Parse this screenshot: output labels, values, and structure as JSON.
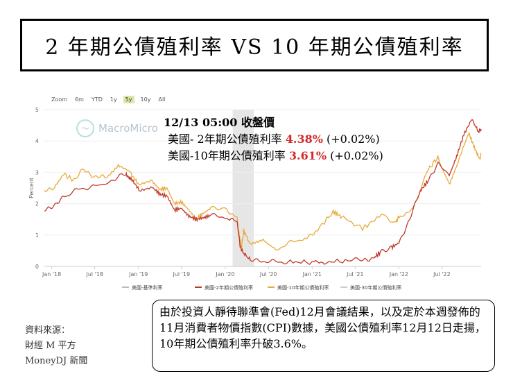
{
  "page_title": "2 年期公債殖利率 VS 10 年期公債殖利率",
  "range_buttons": [
    "Zoom",
    "6m",
    "YTD",
    "1y",
    "5y",
    "10y",
    "All"
  ],
  "range_selected": "5y",
  "watermark": "MacroMicro",
  "overlay": {
    "header": "12/13 05:00 收盤價",
    "rows": [
      {
        "label": "美國- 2年期公債殖利率 ",
        "value": "4.38%",
        "change": " (+0.02%)"
      },
      {
        "label": "美國-10年期公債殖利率 ",
        "value": "3.61%",
        "change": " (+0.02%)"
      }
    ]
  },
  "source": [
    "資料來源：",
    "財經 M 平方",
    "MoneyDJ 新聞"
  ],
  "note": "由於投資人靜待聯準會(Fed)12月會議結果，以及定於本週發佈的11月消費者物價指數(CPI)數據，美國公債殖利率12月12日走揚，10年期公債殖利率升破3.6%。",
  "colors": {
    "series_2y": "#c0392b",
    "series_10y": "#e8a93a",
    "recession": "#e6e6e6"
  },
  "chart_data": {
    "type": "line",
    "ylabel": "Percent",
    "ylim": [
      0,
      5
    ],
    "yticks": [
      "0",
      "1",
      "2",
      "3",
      "4",
      "5"
    ],
    "xlim": [
      "2017-12-01",
      "2022-12-13"
    ],
    "xticks": [
      {
        "label": "Jan '18",
        "date": "2018-01-01"
      },
      {
        "label": "Jul '18",
        "date": "2018-07-01"
      },
      {
        "label": "Jan '19",
        "date": "2019-01-01"
      },
      {
        "label": "Jul '19",
        "date": "2019-07-01"
      },
      {
        "label": "Jan '20",
        "date": "2020-01-01"
      },
      {
        "label": "Jul '20",
        "date": "2020-07-01"
      },
      {
        "label": "Jan '21",
        "date": "2021-01-01"
      },
      {
        "label": "Jul '21",
        "date": "2021-07-01"
      },
      {
        "label": "Jan '22",
        "date": "2022-01-01"
      },
      {
        "label": "Jul '22",
        "date": "2022-07-01"
      }
    ],
    "recession_band": [
      "2020-02-01",
      "2020-04-30"
    ],
    "legend": [
      {
        "name": "美國-基準利率",
        "color": "#bbbbbb"
      },
      {
        "name": "美國-2年期公債殖利率",
        "color": "#c0392b"
      },
      {
        "name": "美國-10年期公債殖利率",
        "color": "#e8a93a"
      },
      {
        "name": "美國-30年期公債殖利率",
        "color": "#cccccc"
      }
    ],
    "legend_position": "bottom",
    "series": [
      {
        "name": "美國-2年期公債殖利率",
        "points": [
          [
            "2017-12-01",
            1.78
          ],
          [
            "2018-01-15",
            1.98
          ],
          [
            "2018-03-01",
            2.25
          ],
          [
            "2018-05-01",
            2.48
          ],
          [
            "2018-07-01",
            2.55
          ],
          [
            "2018-09-01",
            2.7
          ],
          [
            "2018-11-08",
            2.96
          ],
          [
            "2018-12-01",
            2.8
          ],
          [
            "2019-01-03",
            2.45
          ],
          [
            "2019-03-01",
            2.52
          ],
          [
            "2019-04-01",
            2.3
          ],
          [
            "2019-05-01",
            2.25
          ],
          [
            "2019-06-01",
            1.8
          ],
          [
            "2019-07-01",
            1.85
          ],
          [
            "2019-08-01",
            1.6
          ],
          [
            "2019-09-01",
            1.5
          ],
          [
            "2019-10-01",
            1.55
          ],
          [
            "2019-11-01",
            1.62
          ],
          [
            "2020-01-01",
            1.58
          ],
          [
            "2020-02-20",
            1.4
          ],
          [
            "2020-03-05",
            0.6
          ],
          [
            "2020-03-20",
            0.4
          ],
          [
            "2020-04-15",
            0.22
          ],
          [
            "2020-06-01",
            0.18
          ],
          [
            "2020-08-01",
            0.14
          ],
          [
            "2020-10-01",
            0.15
          ],
          [
            "2021-01-01",
            0.12
          ],
          [
            "2021-03-01",
            0.14
          ],
          [
            "2021-06-01",
            0.18
          ],
          [
            "2021-08-01",
            0.22
          ],
          [
            "2021-09-15",
            0.25
          ],
          [
            "2021-10-15",
            0.45
          ],
          [
            "2021-12-01",
            0.6
          ],
          [
            "2022-01-01",
            0.75
          ],
          [
            "2022-02-15",
            1.5
          ],
          [
            "2022-04-01",
            2.4
          ],
          [
            "2022-05-01",
            2.7
          ],
          [
            "2022-06-15",
            3.3
          ],
          [
            "2022-08-01",
            2.9
          ],
          [
            "2022-09-01",
            3.5
          ],
          [
            "2022-10-01",
            4.2
          ],
          [
            "2022-11-04",
            4.7
          ],
          [
            "2022-12-01",
            4.3
          ],
          [
            "2022-12-13",
            4.38
          ]
        ]
      },
      {
        "name": "美國-10年期公債殖利率",
        "points": [
          [
            "2017-12-01",
            2.4
          ],
          [
            "2018-01-15",
            2.55
          ],
          [
            "2018-02-21",
            2.95
          ],
          [
            "2018-04-01",
            2.75
          ],
          [
            "2018-05-17",
            3.1
          ],
          [
            "2018-07-01",
            2.85
          ],
          [
            "2018-08-15",
            2.85
          ],
          [
            "2018-10-08",
            3.23
          ],
          [
            "2018-12-01",
            2.95
          ],
          [
            "2019-01-03",
            2.6
          ],
          [
            "2019-03-01",
            2.7
          ],
          [
            "2019-04-01",
            2.45
          ],
          [
            "2019-05-01",
            2.5
          ],
          [
            "2019-06-01",
            2.0
          ],
          [
            "2019-07-01",
            2.05
          ],
          [
            "2019-08-01",
            1.8
          ],
          [
            "2019-09-01",
            1.5
          ],
          [
            "2019-10-01",
            1.7
          ],
          [
            "2019-11-01",
            1.85
          ],
          [
            "2020-01-01",
            1.88
          ],
          [
            "2020-02-20",
            1.5
          ],
          [
            "2020-03-09",
            0.55
          ],
          [
            "2020-03-19",
            1.15
          ],
          [
            "2020-04-15",
            0.7
          ],
          [
            "2020-06-08",
            0.9
          ],
          [
            "2020-08-01",
            0.55
          ],
          [
            "2020-10-01",
            0.75
          ],
          [
            "2020-12-01",
            0.92
          ],
          [
            "2021-01-15",
            1.1
          ],
          [
            "2021-03-31",
            1.74
          ],
          [
            "2021-05-01",
            1.6
          ],
          [
            "2021-08-01",
            1.2
          ],
          [
            "2021-10-20",
            1.65
          ],
          [
            "2021-12-20",
            1.4
          ],
          [
            "2022-01-01",
            1.6
          ],
          [
            "2022-03-01",
            1.8
          ],
          [
            "2022-05-06",
            3.1
          ],
          [
            "2022-06-14",
            3.48
          ],
          [
            "2022-08-01",
            2.6
          ],
          [
            "2022-09-01",
            3.2
          ],
          [
            "2022-10-24",
            4.24
          ],
          [
            "2022-11-15",
            3.8
          ],
          [
            "2022-12-07",
            3.42
          ],
          [
            "2022-12-13",
            3.61
          ]
        ]
      }
    ]
  }
}
